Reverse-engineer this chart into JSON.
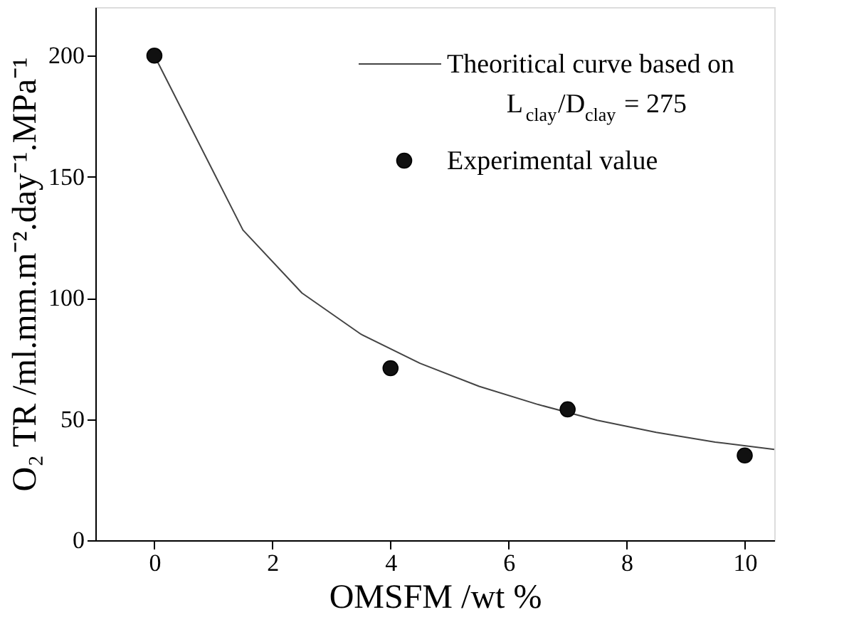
{
  "chart_data": {
    "type": "line",
    "xlabel": "OMSFM /wt %",
    "ylabel": "O₂ TR /ml.mm.m⁻².day⁻¹.MPa⁻¹",
    "series": [
      {
        "name": "Theoritical curve based on L$_{clay}$/D$_{clay}$ = 275",
        "color": "#444444",
        "marker": "none",
        "line_style": "solid",
        "x": [
          0,
          1.5,
          2.5,
          3.5,
          4.5,
          5.5,
          6.5,
          7.5,
          8.5,
          9.5,
          10.5
        ],
        "values": [
          200,
          128,
          102,
          85,
          73,
          63.5,
          56,
          49.5,
          44.5,
          40.5,
          37.5
        ]
      },
      {
        "name": "Experimental value",
        "type": "scatter",
        "color": "#111111",
        "marker": "circle",
        "x": [
          0,
          4,
          7,
          10
        ],
        "values": [
          200,
          71,
          54,
          35
        ]
      }
    ],
    "xlim": [
      -1,
      10.5
    ],
    "xticks": [
      0,
      2,
      4,
      6,
      8,
      10
    ],
    "ylim": [
      0,
      220
    ],
    "yticks": [
      0,
      50,
      100,
      150,
      200
    ],
    "grid": false,
    "legend": "top right"
  }
}
